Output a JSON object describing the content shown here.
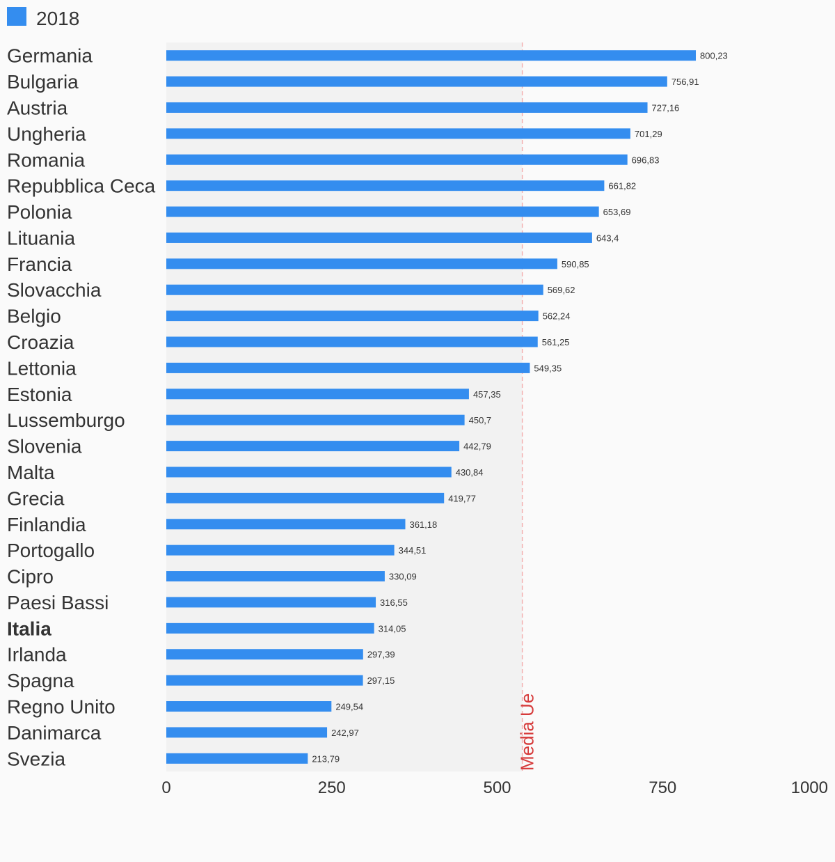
{
  "chart_data": {
    "type": "bar",
    "orientation": "horizontal",
    "title": "",
    "xlabel": "",
    "ylabel": "",
    "xlim": [
      0,
      1000
    ],
    "ticks": [
      0,
      250,
      500,
      750,
      1000
    ],
    "legend": {
      "position": "top-left",
      "label": "2018",
      "color": "#348def"
    },
    "series": [
      {
        "name": "2018",
        "color": "#348def"
      }
    ],
    "categories": [
      "Germania",
      "Bulgaria",
      "Austria",
      "Ungheria",
      "Romania",
      "Repubblica Ceca",
      "Polonia",
      "Lituania",
      "Francia",
      "Slovacchia",
      "Belgio",
      "Croazia",
      "Lettonia",
      "Estonia",
      "Lussemburgo",
      "Slovenia",
      "Malta",
      "Grecia",
      "Finlandia",
      "Portogallo",
      "Cipro",
      "Paesi Bassi",
      "Italia",
      "Irlanda",
      "Spagna",
      "Regno Unito",
      "Danimarca",
      "Svezia"
    ],
    "values": [
      800.23,
      756.91,
      727.16,
      701.29,
      696.83,
      661.82,
      653.69,
      643.4,
      590.85,
      569.62,
      562.24,
      561.25,
      549.35,
      457.35,
      450.7,
      442.79,
      430.84,
      419.77,
      361.18,
      344.51,
      330.09,
      316.55,
      314.05,
      297.39,
      297.15,
      249.54,
      242.97,
      213.79
    ],
    "value_labels": [
      "800,23",
      "756,91",
      "727,16",
      "701,29",
      "696,83",
      "661,82",
      "653,69",
      "643,4",
      "590,85",
      "569,62",
      "562,24",
      "561,25",
      "549,35",
      "457,35",
      "450,7",
      "442,79",
      "430,84",
      "419,77",
      "361,18",
      "344,51",
      "330,09",
      "316,55",
      "314,05",
      "297,39",
      "297,15",
      "249,54",
      "242,97",
      "213,79"
    ],
    "highlight_category": "Italia",
    "reference_line": {
      "label": "Media Ue",
      "value": 538,
      "color": "#d63a3a"
    },
    "shaded_band": [
      0,
      538
    ],
    "grid": false
  }
}
